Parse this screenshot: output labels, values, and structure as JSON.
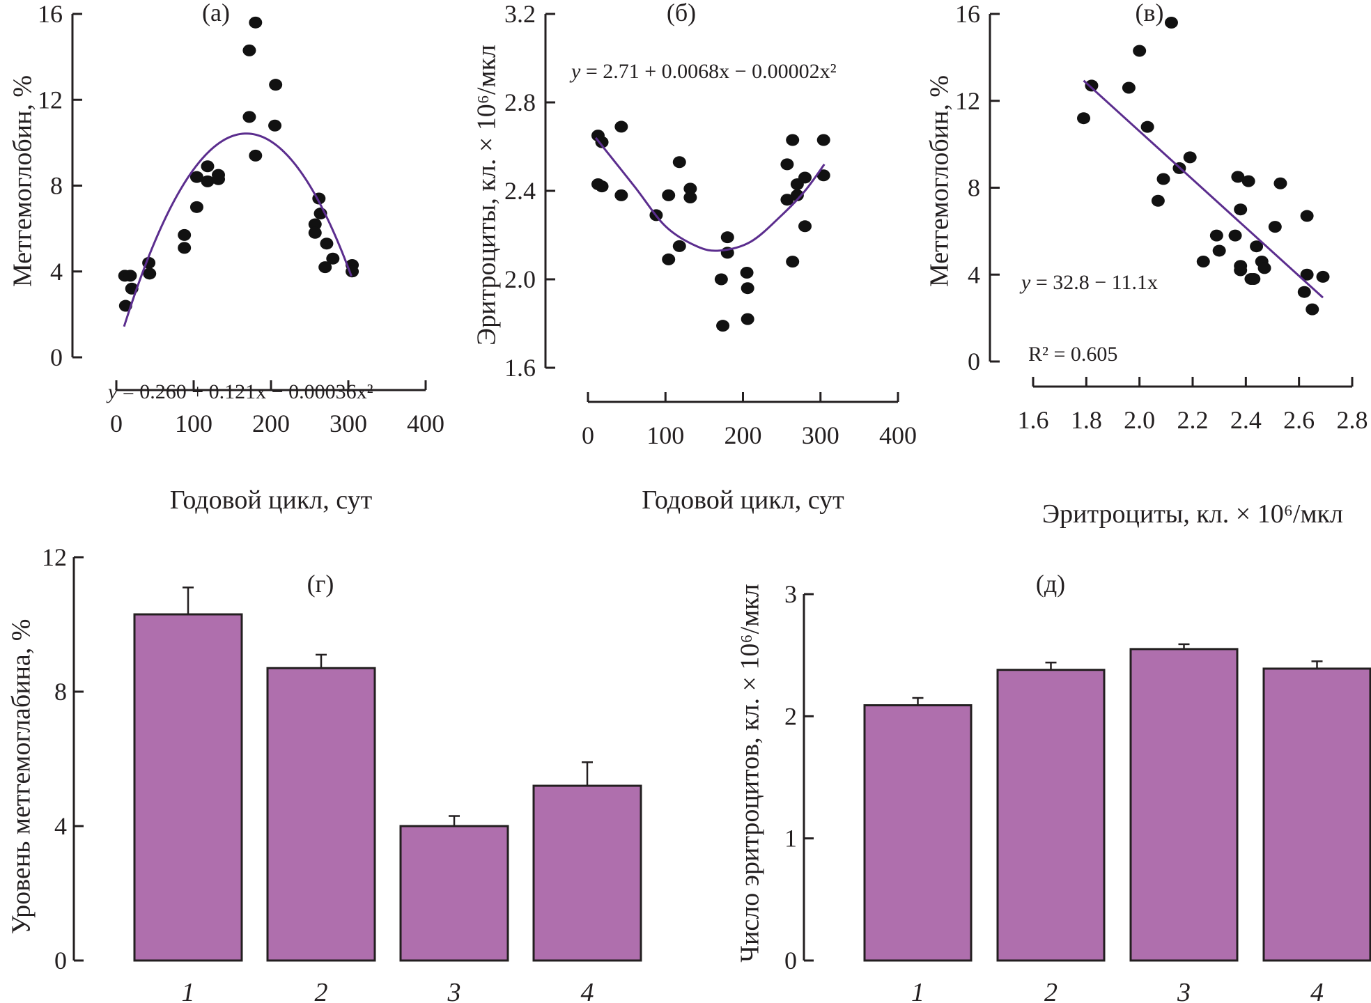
{
  "colors": {
    "curve": "#5b2d8e",
    "bar_fill": "#af6fad",
    "ink": "#231f20"
  },
  "chart_data": [
    {
      "id": "a",
      "type": "scatter",
      "panel_label": "(а)",
      "xlabel": "Годовой цикл, сут",
      "ylabel": "Метгемоглобин, %",
      "xlim": [
        0,
        400
      ],
      "ylim": [
        0,
        16
      ],
      "xticks": [
        "0",
        "100",
        "200",
        "300",
        "400"
      ],
      "yticks": [
        "0",
        "4",
        "8",
        "12",
        "16"
      ],
      "equation": "y = 0.260 + 0.121x − 0.00036x²",
      "fit": {
        "type": "quadratic",
        "coef": [
          0.26,
          0.121,
          -0.00036
        ],
        "x_range": [
          10,
          305
        ]
      },
      "points": [
        [
          11,
          3.8
        ],
        [
          18,
          3.8
        ],
        [
          12,
          2.4
        ],
        [
          20,
          3.2
        ],
        [
          42,
          4.4
        ],
        [
          43,
          3.9
        ],
        [
          88,
          5.7
        ],
        [
          88,
          5.1
        ],
        [
          104,
          7.0
        ],
        [
          104,
          8.4
        ],
        [
          118,
          8.9
        ],
        [
          118,
          8.2
        ],
        [
          132,
          8.5
        ],
        [
          132,
          8.3
        ],
        [
          172,
          14.3
        ],
        [
          172,
          11.2
        ],
        [
          180,
          15.6
        ],
        [
          180,
          9.4
        ],
        [
          206,
          12.7
        ],
        [
          205,
          10.8
        ],
        [
          257,
          6.2
        ],
        [
          257,
          5.8
        ],
        [
          262,
          7.4
        ],
        [
          264,
          6.7
        ],
        [
          270,
          4.2
        ],
        [
          272,
          5.3
        ],
        [
          280,
          4.6
        ],
        [
          305,
          4.3
        ],
        [
          305,
          4.0
        ]
      ]
    },
    {
      "id": "b",
      "type": "scatter",
      "panel_label": "(б)",
      "xlabel": "Годовой цикл, сут",
      "ylabel": "Эритроциты, кл. × 10⁶/мкл",
      "xlim": [
        0,
        400
      ],
      "ylim": [
        1.6,
        3.2
      ],
      "xticks": [
        "0",
        "100",
        "200",
        "300",
        "400"
      ],
      "yticks": [
        "1.6",
        "2.0",
        "2.4",
        "2.8",
        "3.2"
      ],
      "equation": "y = 2.71 + 0.0068x − 0.00002x²",
      "fit": {
        "type": "quadratic_display",
        "points": [
          [
            10,
            2.64
          ],
          [
            60,
            2.42
          ],
          [
            100,
            2.24
          ],
          [
            140,
            2.15
          ],
          [
            170,
            2.13
          ],
          [
            210,
            2.17
          ],
          [
            250,
            2.29
          ],
          [
            280,
            2.4
          ],
          [
            305,
            2.52
          ]
        ]
      },
      "points": [
        [
          13,
          2.65
        ],
        [
          18,
          2.62
        ],
        [
          13,
          2.43
        ],
        [
          18,
          2.42
        ],
        [
          43,
          2.69
        ],
        [
          43,
          2.38
        ],
        [
          88,
          2.29
        ],
        [
          104,
          2.38
        ],
        [
          104,
          2.09
        ],
        [
          118,
          2.53
        ],
        [
          118,
          2.15
        ],
        [
          132,
          2.41
        ],
        [
          132,
          2.37
        ],
        [
          172,
          2.0
        ],
        [
          174,
          1.79
        ],
        [
          180,
          2.19
        ],
        [
          180,
          2.12
        ],
        [
          205,
          2.03
        ],
        [
          206,
          1.96
        ],
        [
          206,
          1.82
        ],
        [
          257,
          2.52
        ],
        [
          257,
          2.36
        ],
        [
          264,
          2.63
        ],
        [
          264,
          2.08
        ],
        [
          270,
          2.43
        ],
        [
          270,
          2.38
        ],
        [
          280,
          2.46
        ],
        [
          280,
          2.24
        ],
        [
          304,
          2.63
        ],
        [
          304,
          2.47
        ]
      ]
    },
    {
      "id": "v",
      "type": "scatter",
      "panel_label": "(в)",
      "xlabel": "Эритроциты, кл. × 10⁶/мкл",
      "ylabel": "Метгемоглобин, %",
      "xlim": [
        1.6,
        2.8
      ],
      "ylim": [
        0,
        16
      ],
      "xticks": [
        "1.6",
        "1.8",
        "2.0",
        "2.2",
        "2.4",
        "2.6",
        "2.8"
      ],
      "yticks": [
        "0",
        "4",
        "8",
        "12",
        "16"
      ],
      "equation": "y = 32.8 − 11.1x",
      "r2": "R² = 0.605",
      "fit": {
        "type": "linear",
        "coef": [
          32.8,
          -11.1
        ],
        "x_range": [
          1.79,
          2.69
        ]
      },
      "points": [
        [
          1.79,
          11.2
        ],
        [
          1.82,
          12.7
        ],
        [
          1.96,
          12.6
        ],
        [
          2.0,
          14.3
        ],
        [
          2.03,
          10.8
        ],
        [
          2.07,
          7.4
        ],
        [
          2.09,
          8.4
        ],
        [
          2.12,
          15.6
        ],
        [
          2.15,
          8.9
        ],
        [
          2.19,
          9.4
        ],
        [
          2.24,
          4.6
        ],
        [
          2.29,
          5.8
        ],
        [
          2.3,
          5.1
        ],
        [
          2.36,
          5.8
        ],
        [
          2.37,
          8.5
        ],
        [
          2.38,
          7.0
        ],
        [
          2.38,
          4.4
        ],
        [
          2.38,
          4.2
        ],
        [
          2.41,
          8.3
        ],
        [
          2.42,
          3.8
        ],
        [
          2.43,
          3.8
        ],
        [
          2.44,
          5.3
        ],
        [
          2.46,
          4.6
        ],
        [
          2.47,
          4.3
        ],
        [
          2.51,
          6.2
        ],
        [
          2.53,
          8.2
        ],
        [
          2.62,
          3.2
        ],
        [
          2.63,
          6.7
        ],
        [
          2.63,
          4.0
        ],
        [
          2.65,
          2.4
        ],
        [
          2.69,
          3.9
        ]
      ]
    },
    {
      "id": "g",
      "type": "bar",
      "panel_label": "(г)",
      "ylabel": "Уровень метгемоглабина, %",
      "ylim": [
        0,
        12
      ],
      "yticks": [
        "0",
        "4",
        "8",
        "12"
      ],
      "categories": [
        "1",
        "2",
        "3",
        "4"
      ],
      "values": [
        10.3,
        8.7,
        4.0,
        5.2
      ],
      "errors": [
        0.8,
        0.4,
        0.3,
        0.7
      ]
    },
    {
      "id": "d",
      "type": "bar",
      "panel_label": "(д)",
      "ylabel": "Число эритроцитов, кл. × 10⁶/мкл",
      "ylim": [
        0,
        3
      ],
      "yticks": [
        "0",
        "1",
        "2",
        "3"
      ],
      "categories": [
        "1",
        "2",
        "3",
        "4"
      ],
      "values": [
        2.09,
        2.38,
        2.55,
        2.39
      ],
      "errors": [
        0.06,
        0.06,
        0.04,
        0.06
      ]
    }
  ]
}
